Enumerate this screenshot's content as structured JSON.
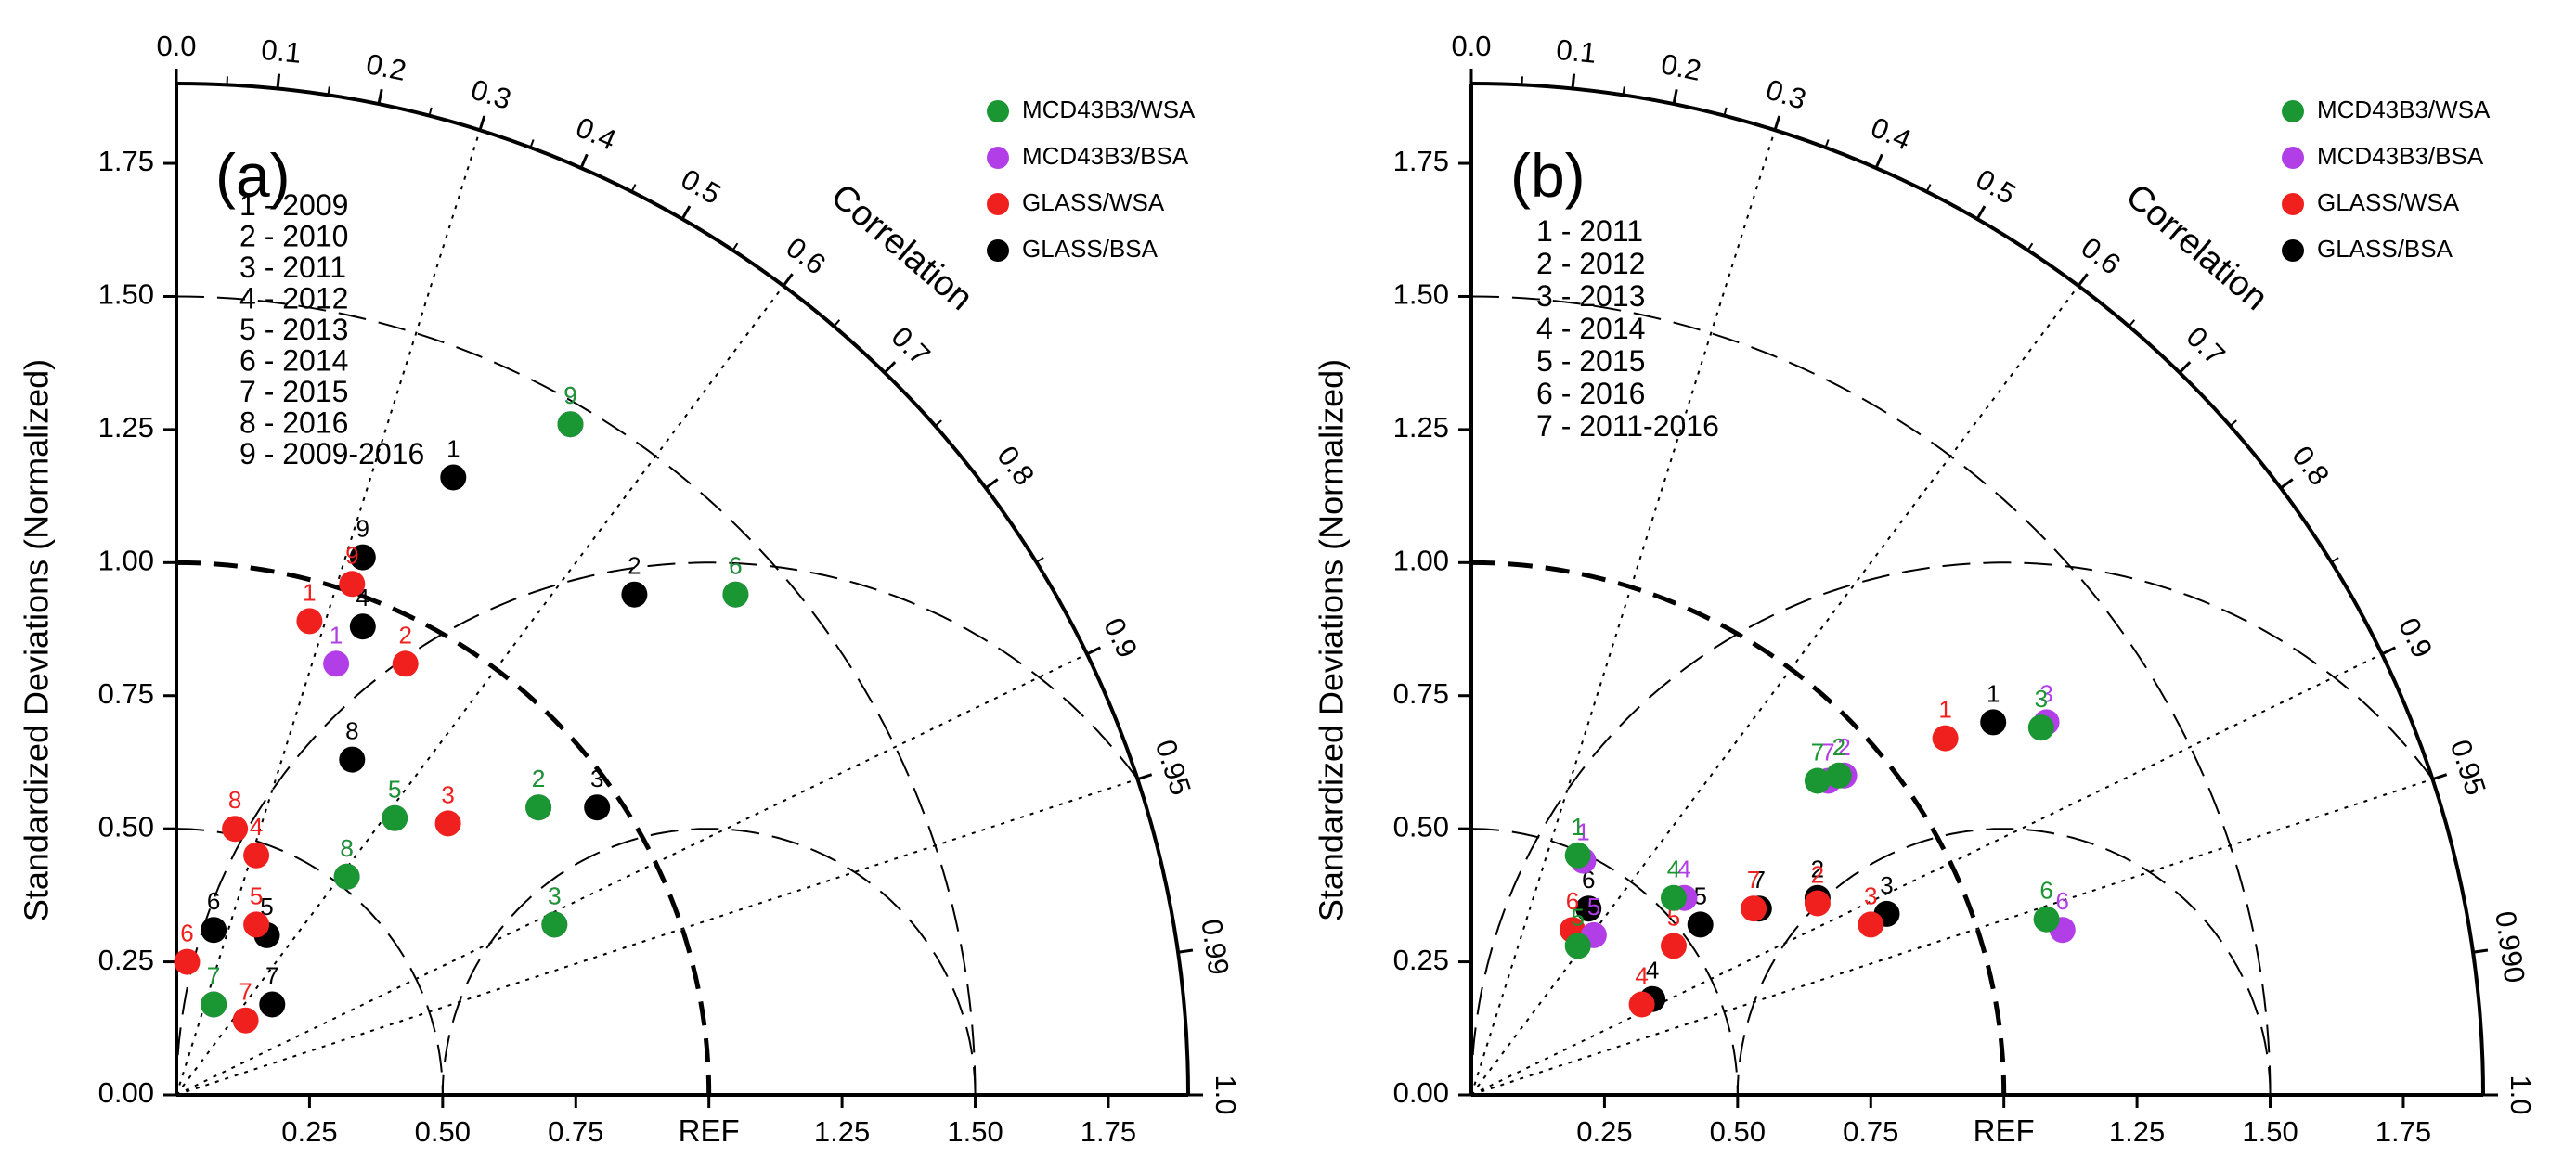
{
  "colors": {
    "MCD43B3/WSA": "#1a9632",
    "MCD43B3/BSA": "#b13ee6",
    "GLASS/WSA": "#f0201e",
    "GLASS/BSA": "#000000"
  },
  "chart_data": [
    {
      "type": "taylor-diagram",
      "panel_label": "(a)",
      "ylabel": "Standardized Deviations (Normalized)",
      "xlabel_ref": "REF",
      "corr_label": "Correlation",
      "std_range": [
        0,
        1.9
      ],
      "x_ticks": [
        "0.25",
        "0.50",
        "0.75",
        "1.25",
        "1.50",
        "1.75"
      ],
      "y_ticks": [
        "0.00",
        "0.25",
        "0.50",
        "0.75",
        "1.00",
        "1.25",
        "1.50",
        "1.75"
      ],
      "corr_ticks": [
        "0.0",
        "0.1",
        "0.2",
        "0.3",
        "0.4",
        "0.5",
        "0.6",
        "0.7",
        "0.8",
        "0.9",
        "0.95",
        "0.99",
        "1.0"
      ],
      "legend": [
        "MCD43B3/WSA",
        "MCD43B3/BSA",
        "GLASS/WSA",
        "GLASS/BSA"
      ],
      "case_key": [
        "1 - 2009",
        "2 - 2010",
        "3 - 2011",
        "4 - 2012",
        "5 - 2013",
        "6 - 2014",
        "7 - 2015",
        "8 - 2016",
        "9 - 2009-2016"
      ],
      "series": [
        {
          "name": "MCD43B3/WSA",
          "points": [
            {
              "label": "9",
              "x": 0.74,
              "y": 1.26
            },
            {
              "label": "6",
              "x": 1.05,
              "y": 0.94
            },
            {
              "label": "5",
              "x": 0.41,
              "y": 0.52
            },
            {
              "label": "2",
              "x": 0.68,
              "y": 0.54
            },
            {
              "label": "3",
              "x": 0.71,
              "y": 0.32
            },
            {
              "label": "8",
              "x": 0.32,
              "y": 0.41
            },
            {
              "label": "7",
              "x": 0.07,
              "y": 0.17
            }
          ]
        },
        {
          "name": "MCD43B3/BSA",
          "points": [
            {
              "label": "9",
              "x": 0.74,
              "y": 1.26
            },
            {
              "label": "6",
              "x": 1.05,
              "y": 0.94
            },
            {
              "label": "1",
              "x": 0.3,
              "y": 0.81
            },
            {
              "label": "5",
              "x": 0.41,
              "y": 0.52
            },
            {
              "label": "2",
              "x": 0.68,
              "y": 0.54
            },
            {
              "label": "3",
              "x": 0.71,
              "y": 0.32
            },
            {
              "label": "8",
              "x": 0.32,
              "y": 0.41
            },
            {
              "label": "7",
              "x": 0.07,
              "y": 0.17
            }
          ]
        },
        {
          "name": "GLASS/WSA",
          "points": [
            {
              "label": "1",
              "x": 0.25,
              "y": 0.89
            },
            {
              "label": "9",
              "x": 0.33,
              "y": 0.96
            },
            {
              "label": "2",
              "x": 0.43,
              "y": 0.81
            },
            {
              "label": "3",
              "x": 0.51,
              "y": 0.51
            },
            {
              "label": "8",
              "x": 0.11,
              "y": 0.5
            },
            {
              "label": "4",
              "x": 0.15,
              "y": 0.45
            },
            {
              "label": "5",
              "x": 0.15,
              "y": 0.32
            },
            {
              "label": "6",
              "x": 0.02,
              "y": 0.25
            },
            {
              "label": "7",
              "x": 0.13,
              "y": 0.14
            }
          ]
        },
        {
          "name": "GLASS/BSA",
          "points": [
            {
              "label": "1",
              "x": 0.52,
              "y": 1.16
            },
            {
              "label": "9",
              "x": 0.35,
              "y": 1.01
            },
            {
              "label": "4",
              "x": 0.35,
              "y": 0.88
            },
            {
              "label": "2",
              "x": 0.86,
              "y": 0.94
            },
            {
              "label": "8",
              "x": 0.33,
              "y": 0.63
            },
            {
              "label": "3",
              "x": 0.79,
              "y": 0.54
            },
            {
              "label": "6",
              "x": 0.07,
              "y": 0.31
            },
            {
              "label": "5",
              "x": 0.17,
              "y": 0.3
            },
            {
              "label": "7",
              "x": 0.18,
              "y": 0.17
            }
          ]
        }
      ]
    },
    {
      "type": "taylor-diagram",
      "panel_label": "(b)",
      "ylabel": "Standardized Deviations (Normalized)",
      "xlabel_ref": "REF",
      "corr_label": "Correlation",
      "std_range": [
        0,
        1.9
      ],
      "x_ticks": [
        "0.25",
        "0.50",
        "0.75",
        "1.25",
        "1.50",
        "1.75"
      ],
      "y_ticks": [
        "0.00",
        "0.25",
        "0.50",
        "0.75",
        "1.00",
        "1.25",
        "1.50",
        "1.75"
      ],
      "corr_ticks": [
        "0.0",
        "0.1",
        "0.2",
        "0.3",
        "0.4",
        "0.5",
        "0.6",
        "0.7",
        "0.8",
        "0.9",
        "0.95",
        "0.990",
        "1.0"
      ],
      "legend": [
        "MCD43B3/WSA",
        "MCD43B3/BSA",
        "GLASS/WSA",
        "GLASS/BSA"
      ],
      "case_key": [
        "1 - 2011",
        "2 - 2012",
        "3 - 2013",
        "4 - 2014",
        "5 - 2015",
        "6 - 2016",
        "7 - 2011-2016"
      ],
      "series": [
        {
          "name": "MCD43B3/WSA",
          "points": [
            {
              "label": "1",
              "x": 0.2,
              "y": 0.45
            },
            {
              "label": "4",
              "x": 0.38,
              "y": 0.37
            },
            {
              "label": "7",
              "x": 0.65,
              "y": 0.59
            },
            {
              "label": "2",
              "x": 0.69,
              "y": 0.6
            },
            {
              "label": "3",
              "x": 1.07,
              "y": 0.69
            },
            {
              "label": "6",
              "x": 1.08,
              "y": 0.33
            },
            {
              "label": "5",
              "x": 0.2,
              "y": 0.28
            }
          ]
        },
        {
          "name": "MCD43B3/BSA",
          "points": [
            {
              "label": "1",
              "x": 0.21,
              "y": 0.44
            },
            {
              "label": "4",
              "x": 0.4,
              "y": 0.37
            },
            {
              "label": "7",
              "x": 0.67,
              "y": 0.59
            },
            {
              "label": "2",
              "x": 0.7,
              "y": 0.6
            },
            {
              "label": "3",
              "x": 1.08,
              "y": 0.7
            },
            {
              "label": "6",
              "x": 1.11,
              "y": 0.31
            },
            {
              "label": "5",
              "x": 0.23,
              "y": 0.3
            }
          ]
        },
        {
          "name": "GLASS/WSA",
          "points": [
            {
              "label": "1",
              "x": 0.89,
              "y": 0.67
            },
            {
              "label": "7",
              "x": 0.53,
              "y": 0.35
            },
            {
              "label": "2",
              "x": 0.65,
              "y": 0.36
            },
            {
              "label": "3",
              "x": 0.75,
              "y": 0.32
            },
            {
              "label": "6",
              "x": 0.19,
              "y": 0.31
            },
            {
              "label": "5",
              "x": 0.38,
              "y": 0.28
            },
            {
              "label": "4",
              "x": 0.32,
              "y": 0.17
            }
          ]
        },
        {
          "name": "GLASS/BSA",
          "points": [
            {
              "label": "1",
              "x": 0.98,
              "y": 0.7
            },
            {
              "label": "3",
              "x": 0.78,
              "y": 0.34
            },
            {
              "label": "2",
              "x": 0.65,
              "y": 0.37
            },
            {
              "label": "7",
              "x": 0.54,
              "y": 0.35
            },
            {
              "label": "6",
              "x": 0.22,
              "y": 0.35
            },
            {
              "label": "5",
              "x": 0.43,
              "y": 0.32
            },
            {
              "label": "4",
              "x": 0.34,
              "y": 0.18
            }
          ]
        }
      ]
    }
  ]
}
